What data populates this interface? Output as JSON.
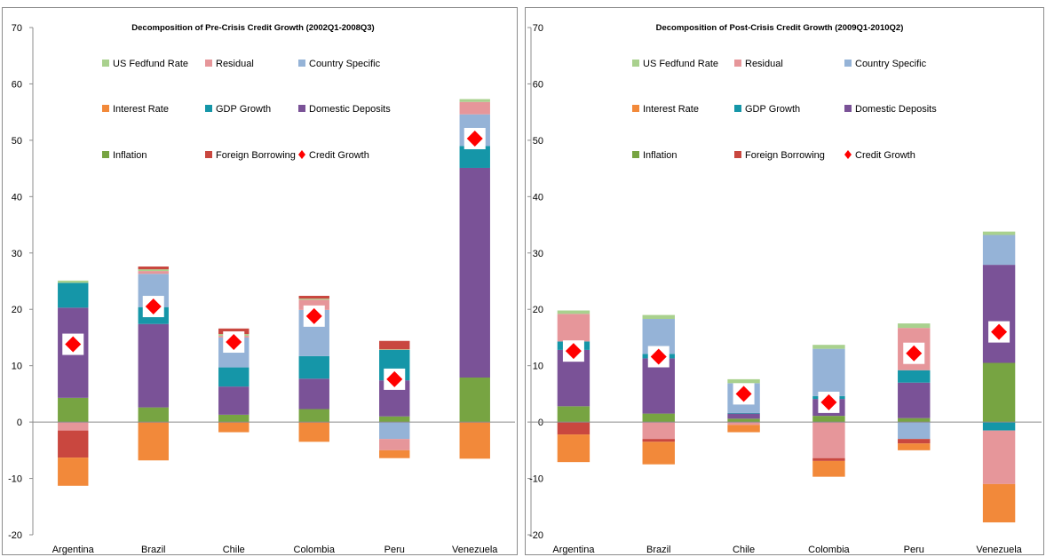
{
  "colors": {
    "US Fedfund Rate": "#a9d18e",
    "Residual": "#e6969a",
    "Country Specific": "#95b3d7",
    "Interest Rate": "#f2893a",
    "GDP Growth": "#1596a8",
    "Domestic Deposits": "#7a5297",
    "Inflation": "#77a442",
    "Foreign Borrowing": "#c9473f",
    "Credit Growth": "#ff0000"
  },
  "chart_data": [
    {
      "type": "bar",
      "stacked": true,
      "title": "Decomposition of Pre-Crisis Credit Growth (2002Q1-2008Q3)",
      "categories": [
        "Argentina",
        "Brazil",
        "Chile",
        "Colombia",
        "Peru",
        "Venezuela"
      ],
      "ylim": [
        -20,
        70
      ],
      "yticks": [
        -20,
        -10,
        0,
        10,
        20,
        30,
        40,
        50,
        60,
        70
      ],
      "grid": false,
      "legend": [
        "US Fedfund Rate",
        "Residual",
        "Country Specific",
        "Interest Rate",
        "GDP Growth",
        "Domestic Deposits",
        "Inflation",
        "Foreign Borrowing",
        "Credit Growth"
      ],
      "series": [
        {
          "name": "Inflation",
          "values": [
            4.3,
            2.6,
            1.3,
            2.3,
            1.0,
            7.9
          ]
        },
        {
          "name": "Domestic Deposits",
          "values": [
            16.0,
            14.8,
            5.0,
            5.4,
            6.4,
            37.2
          ]
        },
        {
          "name": "GDP Growth",
          "values": [
            4.4,
            3.0,
            3.4,
            4.0,
            5.4,
            3.9
          ]
        },
        {
          "name": "Country Specific",
          "values": [
            0,
            5.9,
            5.3,
            8.2,
            -3.0,
            5.6
          ]
        },
        {
          "name": "Residual",
          "values": [
            -1.5,
            0.5,
            0.3,
            1.8,
            -2.0,
            2.2
          ]
        },
        {
          "name": "US Fedfund Rate",
          "values": [
            0.4,
            0.3,
            0.3,
            0.2,
            0.1,
            0.5
          ]
        },
        {
          "name": "Foreign Borrowing",
          "values": [
            -4.8,
            0.5,
            1.0,
            0.5,
            1.5,
            0
          ]
        },
        {
          "name": "Interest Rate",
          "values": [
            -5.0,
            -6.8,
            -1.8,
            -3.5,
            -1.4,
            -6.5
          ]
        }
      ],
      "credit_growth": [
        13.8,
        20.5,
        14.2,
        18.8,
        7.6,
        50.3
      ]
    },
    {
      "type": "bar",
      "stacked": true,
      "title": "Decomposition of Post-Crisis Credit Growth (2009Q1-2010Q2)",
      "categories": [
        "Argentina",
        "Brazil",
        "Chile",
        "Colombia",
        "Peru",
        "Venezuela"
      ],
      "ylim": [
        -20,
        70
      ],
      "yticks": [
        -20,
        -10,
        0,
        10,
        20,
        30,
        40,
        50,
        60,
        70
      ],
      "grid": false,
      "legend": [
        "US Fedfund Rate",
        "Residual",
        "Country Specific",
        "Interest Rate",
        "GDP Growth",
        "Domestic Deposits",
        "Inflation",
        "Foreign Borrowing",
        "Credit Growth"
      ],
      "series": [
        {
          "name": "Inflation",
          "values": [
            2.8,
            1.5,
            0.6,
            1.1,
            0.7,
            10.5
          ]
        },
        {
          "name": "Domestic Deposits",
          "values": [
            10.0,
            9.8,
            0.9,
            3.0,
            6.3,
            17.4
          ]
        },
        {
          "name": "GDP Growth",
          "values": [
            1.5,
            0.8,
            0.1,
            0.5,
            2.2,
            -1.5
          ]
        },
        {
          "name": "Country Specific",
          "values": [
            0,
            6.2,
            5.3,
            8.4,
            -3.0,
            5.3
          ]
        },
        {
          "name": "Residual",
          "values": [
            4.9,
            -3.0,
            -0.5,
            -6.4,
            7.5,
            -9.5
          ]
        },
        {
          "name": "US Fedfund Rate",
          "values": [
            0.6,
            0.7,
            0.7,
            0.7,
            0.8,
            0.6
          ]
        },
        {
          "name": "Foreign Borrowing",
          "values": [
            -2.2,
            -0.5,
            0,
            -0.5,
            -0.8,
            0
          ]
        },
        {
          "name": "Interest Rate",
          "values": [
            -4.9,
            -4.0,
            -1.3,
            -2.8,
            -1.2,
            -6.8
          ]
        }
      ],
      "credit_growth": [
        12.6,
        11.6,
        5.0,
        3.5,
        12.2,
        16.0
      ]
    }
  ]
}
